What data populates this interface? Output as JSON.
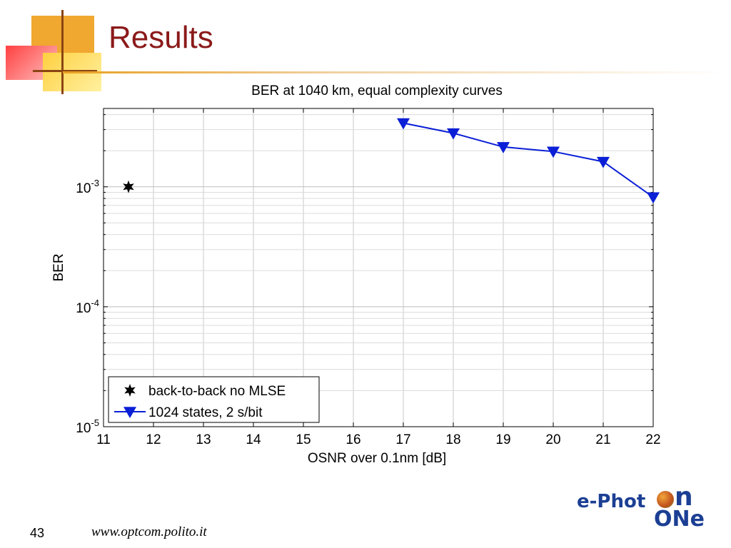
{
  "slide": {
    "title": "Results",
    "page_number": "43",
    "footer_url": "www.optcom.polito.it",
    "logo": {
      "part1": "e-Phot",
      "part2": "n",
      "part3": "ONe"
    },
    "title_color": "#8b1a1a",
    "logo_color": "#1c3f94"
  },
  "chart_data": {
    "type": "line",
    "title": "BER at 1040 km, equal complexity curves",
    "xlabel": "OSNR over 0.1nm [dB]",
    "ylabel": "BER",
    "xlim": [
      11,
      22
    ],
    "ylim": [
      1e-05,
      0.0045
    ],
    "yscale": "log",
    "grid": true,
    "legend_position": "bottom-left",
    "x_ticks": [
      "11",
      "12",
      "13",
      "14",
      "15",
      "16",
      "17",
      "18",
      "19",
      "20",
      "21",
      "22"
    ],
    "y_ticks": [
      {
        "value": 1e-05,
        "base": "10",
        "exp": "-5"
      },
      {
        "value": 0.0001,
        "base": "10",
        "exp": "-4"
      },
      {
        "value": 0.001,
        "base": "10",
        "exp": "-3"
      }
    ],
    "series": [
      {
        "name": "back-to-back no MLSE",
        "marker": "star",
        "color": "#000000",
        "x": [
          11.5
        ],
        "y": [
          0.001
        ]
      },
      {
        "name": "1024 states, 2 s/bit",
        "marker": "triangle-down",
        "color": "#0a1fd6",
        "x": [
          17,
          18,
          19,
          20,
          21,
          22
        ],
        "y": [
          0.0034,
          0.0028,
          0.00215,
          0.00197,
          0.00162,
          0.00082
        ]
      }
    ]
  }
}
